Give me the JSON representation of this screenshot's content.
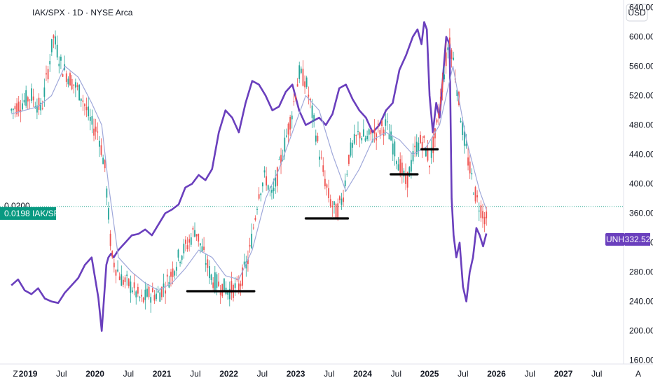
{
  "header": {
    "title": "IAK/SPX · 1D · NYSE Arca",
    "currency": "USD"
  },
  "colors": {
    "iak_candle_up": "#26a69a",
    "iak_candle_down": "#ef5350",
    "iak_ma": "#9fa8da",
    "unh_line": "#6a3fbd",
    "ratio_tag": "#089981",
    "unh_tag": "#6a3fbd",
    "support_lines": "#000000"
  },
  "tags": {
    "ratio_value": "0.0198",
    "ratio_symbol": "IAK/SPX",
    "ratio_cut_label": "0.0200",
    "unh_symbol": "UNH",
    "unh_value": "332.52"
  },
  "axis_buttons": {
    "left": "Z",
    "right": "A"
  },
  "chart_data": {
    "type": "line",
    "x_ticks": [
      "2019",
      "Jul",
      "2020",
      "Jul",
      "2021",
      "Jul",
      "2022",
      "Jul",
      "2023",
      "Jul",
      "2024",
      "Jul",
      "2025",
      "Jul",
      "2026",
      "Jul",
      "2027",
      "Jul"
    ],
    "x_ticks_bold": [
      true,
      false,
      true,
      false,
      true,
      false,
      true,
      false,
      true,
      false,
      true,
      false,
      true,
      false,
      true,
      false,
      true,
      false
    ],
    "y_ticks": [
      "640.00",
      "600.00",
      "560.00",
      "520.00",
      "480.00",
      "440.00",
      "400.00",
      "360.00",
      "320.00",
      "280.00",
      "240.00",
      "200.00",
      "160.00"
    ],
    "y_tick_values": [
      640,
      600,
      560,
      520,
      480,
      440,
      400,
      360,
      320,
      280,
      240,
      200,
      160
    ],
    "ylim": [
      155,
      650
    ],
    "xlim": [
      2018.58,
      2027.9
    ],
    "series": [
      {
        "name": "UNH",
        "style": "line",
        "x": [
          2018.75,
          2018.85,
          2018.95,
          2019.05,
          2019.15,
          2019.25,
          2019.35,
          2019.45,
          2019.55,
          2019.65,
          2019.75,
          2019.85,
          2019.95,
          2020.05,
          2020.1,
          2020.17,
          2020.2,
          2020.24,
          2020.28,
          2020.35,
          2020.45,
          2020.55,
          2020.65,
          2020.75,
          2020.85,
          2020.95,
          2021.05,
          2021.15,
          2021.25,
          2021.35,
          2021.45,
          2021.55,
          2021.65,
          2021.75,
          2021.85,
          2021.95,
          2022.05,
          2022.15,
          2022.25,
          2022.35,
          2022.45,
          2022.55,
          2022.65,
          2022.75,
          2022.85,
          2022.95,
          2023.05,
          2023.15,
          2023.25,
          2023.35,
          2023.45,
          2023.55,
          2023.65,
          2023.75,
          2023.85,
          2023.95,
          2024.05,
          2024.15,
          2024.25,
          2024.35,
          2024.45,
          2024.55,
          2024.65,
          2024.75,
          2024.82,
          2024.88,
          2024.92,
          2024.96,
          2025.0,
          2025.05,
          2025.1,
          2025.15,
          2025.2,
          2025.25,
          2025.3,
          2025.33,
          2025.36,
          2025.4,
          2025.45,
          2025.5,
          2025.55,
          2025.6,
          2025.65,
          2025.7,
          2025.75,
          2025.8,
          2025.85
        ],
        "values": [
          262,
          270,
          255,
          250,
          258,
          244,
          240,
          238,
          252,
          262,
          272,
          290,
          300,
          245,
          200,
          290,
          300,
          305,
          300,
          310,
          320,
          330,
          332,
          338,
          330,
          345,
          360,
          365,
          372,
          395,
          400,
          412,
          405,
          420,
          470,
          500,
          490,
          470,
          510,
          540,
          535,
          520,
          500,
          505,
          525,
          535,
          500,
          480,
          485,
          490,
          480,
          495,
          530,
          535,
          515,
          500,
          490,
          470,
          480,
          500,
          510,
          555,
          575,
          600,
          610,
          590,
          620,
          610,
          520,
          470,
          510,
          490,
          545,
          600,
          590,
          380,
          330,
          300,
          320,
          260,
          240,
          280,
          300,
          340,
          330,
          315,
          332.52
        ]
      },
      {
        "name": "IAK/SPX",
        "style": "candles",
        "x": [
          2018.75,
          2018.9,
          2019.05,
          2019.2,
          2019.38,
          2019.5,
          2019.65,
          2019.8,
          2019.95,
          2020.05,
          2020.15,
          2020.25,
          2020.4,
          2020.55,
          2020.7,
          2020.8,
          2020.95,
          2021.1,
          2021.25,
          2021.4,
          2021.5,
          2021.6,
          2021.75,
          2021.9,
          2022.0,
          2022.15,
          2022.3,
          2022.45,
          2022.55,
          2022.65,
          2022.8,
          2022.95,
          2023.05,
          2023.15,
          2023.3,
          2023.4,
          2023.5,
          2023.6,
          2023.7,
          2023.8,
          2023.95,
          2024.05,
          2024.2,
          2024.35,
          2024.5,
          2024.65,
          2024.8,
          2024.9,
          2025.0,
          2025.1,
          2025.2,
          2025.3,
          2025.4,
          2025.5,
          2025.6,
          2025.7,
          2025.8,
          2025.85
        ],
        "values": [
          500,
          510,
          520,
          500,
          600,
          560,
          540,
          520,
          480,
          470,
          420,
          300,
          270,
          260,
          240,
          250,
          250,
          270,
          300,
          320,
          340,
          310,
          270,
          260,
          255,
          260,
          300,
          390,
          410,
          380,
          440,
          500,
          550,
          540,
          470,
          420,
          380,
          360,
          380,
          440,
          470,
          460,
          470,
          480,
          440,
          400,
          450,
          460,
          430,
          470,
          540,
          600,
          540,
          470,
          420,
          380,
          360,
          350
        ]
      },
      {
        "name": "IAK/SPX MA",
        "style": "line",
        "x": [
          2018.75,
          2018.95,
          2019.15,
          2019.35,
          2019.55,
          2019.75,
          2019.95,
          2020.1,
          2020.2,
          2020.35,
          2020.55,
          2020.75,
          2020.95,
          2021.15,
          2021.35,
          2021.55,
          2021.75,
          2021.95,
          2022.15,
          2022.35,
          2022.55,
          2022.75,
          2022.95,
          2023.15,
          2023.35,
          2023.55,
          2023.75,
          2023.95,
          2024.15,
          2024.35,
          2024.55,
          2024.75,
          2024.95,
          2025.15,
          2025.35,
          2025.55,
          2025.75,
          2025.85
        ],
        "values": [
          495,
          500,
          505,
          520,
          560,
          545,
          510,
          480,
          400,
          300,
          280,
          265,
          255,
          265,
          285,
          310,
          300,
          275,
          270,
          310,
          380,
          420,
          470,
          520,
          500,
          440,
          390,
          420,
          460,
          470,
          460,
          440,
          450,
          480,
          560,
          460,
          390,
          365
        ]
      }
    ],
    "horizontal_levels": [
      {
        "name": "support-1",
        "x_start": 2021.38,
        "x_end": 2022.38,
        "y": 254
      },
      {
        "name": "support-2",
        "x_start": 2023.15,
        "x_end": 2023.78,
        "y": 353
      },
      {
        "name": "support-3",
        "x_start": 2024.42,
        "x_end": 2024.82,
        "y": 413
      },
      {
        "name": "support-4",
        "x_start": 2024.88,
        "x_end": 2025.12,
        "y": 447
      }
    ],
    "reference_line": {
      "value": 369,
      "style": "dotted"
    },
    "grid": false,
    "legend": "none"
  }
}
